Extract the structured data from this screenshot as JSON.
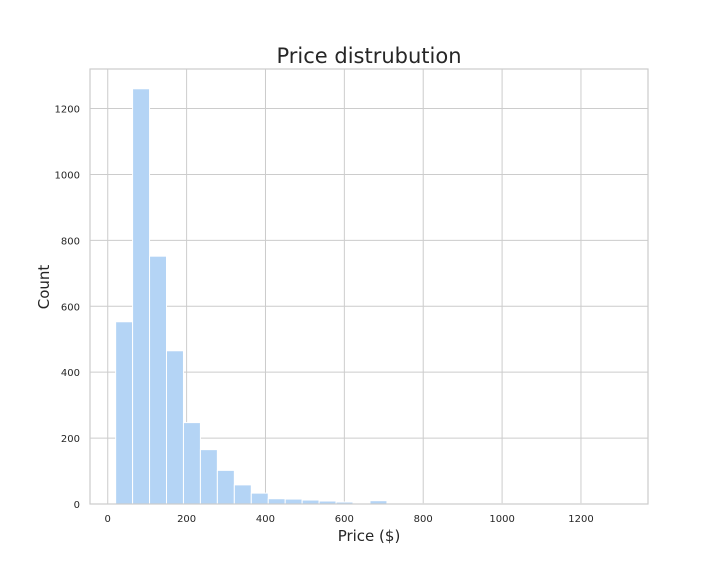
{
  "chart_data": {
    "type": "bar",
    "title": "Price distrubution",
    "xlabel": "Price ($)",
    "ylabel": "Count",
    "xlim": [
      -45,
      1370
    ],
    "ylim": [
      0,
      1320
    ],
    "xticks": [
      0,
      200,
      400,
      600,
      800,
      1000,
      1200
    ],
    "yticks": [
      0,
      200,
      400,
      600,
      800,
      1000,
      1200
    ],
    "bin_width": 43,
    "bins": [
      {
        "start": 20,
        "count": 553
      },
      {
        "start": 63,
        "count": 1260
      },
      {
        "start": 106,
        "count": 752
      },
      {
        "start": 149,
        "count": 465
      },
      {
        "start": 192,
        "count": 247
      },
      {
        "start": 235,
        "count": 165
      },
      {
        "start": 278,
        "count": 102
      },
      {
        "start": 321,
        "count": 58
      },
      {
        "start": 364,
        "count": 33
      },
      {
        "start": 407,
        "count": 16
      },
      {
        "start": 450,
        "count": 15
      },
      {
        "start": 493,
        "count": 12
      },
      {
        "start": 536,
        "count": 9
      },
      {
        "start": 579,
        "count": 6
      },
      {
        "start": 622,
        "count": 3
      },
      {
        "start": 665,
        "count": 10
      },
      {
        "start": 708,
        "count": 2
      },
      {
        "start": 751,
        "count": 2
      },
      {
        "start": 794,
        "count": 1
      },
      {
        "start": 837,
        "count": 1
      },
      {
        "start": 880,
        "count": 1
      },
      {
        "start": 923,
        "count": 1
      },
      {
        "start": 966,
        "count": 1
      },
      {
        "start": 1009,
        "count": 1
      },
      {
        "start": 1052,
        "count": 1
      },
      {
        "start": 1095,
        "count": 1
      },
      {
        "start": 1138,
        "count": 1
      },
      {
        "start": 1181,
        "count": 1
      },
      {
        "start": 1224,
        "count": 1
      },
      {
        "start": 1267,
        "count": 1
      }
    ],
    "bar_color": "#b4d4f5",
    "grid": true,
    "legend": "none"
  }
}
